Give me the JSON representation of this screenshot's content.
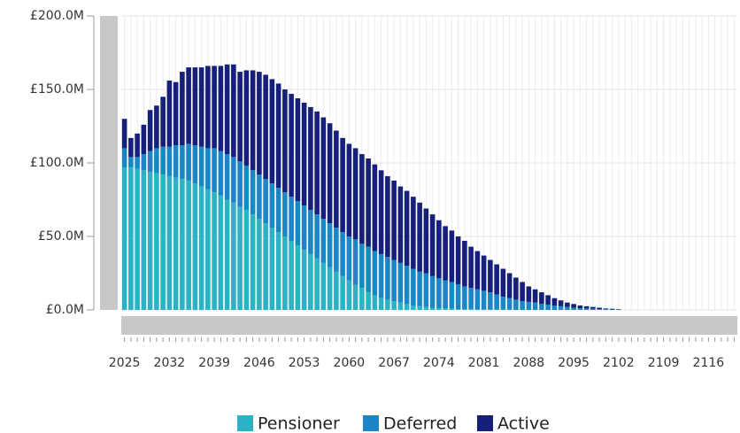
{
  "chart_data": {
    "type": "stacked_bar",
    "categories": [
      "2025",
      null,
      null,
      null,
      null,
      null,
      null,
      "2032",
      null,
      null,
      null,
      null,
      null,
      null,
      "2039",
      null,
      null,
      null,
      null,
      null,
      null,
      "2046",
      null,
      null,
      null,
      null,
      null,
      null,
      "2053",
      null,
      null,
      null,
      null,
      null,
      null,
      "2060",
      null,
      null,
      null,
      null,
      null,
      null,
      "2067",
      null,
      null,
      null,
      null,
      null,
      null,
      "2074",
      null,
      null,
      null,
      null,
      null,
      null,
      "2081",
      null,
      null,
      null,
      null,
      null,
      null,
      "2088",
      null,
      null,
      null,
      null,
      null,
      null,
      "2095",
      null,
      null,
      null,
      null,
      null,
      null,
      "2102",
      null,
      null,
      null,
      null,
      null,
      null,
      "2109",
      null,
      null,
      null,
      null,
      null,
      null,
      "2116",
      null,
      null,
      null,
      null
    ],
    "series": [
      {
        "name": "Pensioner",
        "color": "#2bb3c5",
        "values": [
          97,
          97,
          96,
          95,
          94,
          93,
          92,
          91,
          90,
          89,
          88,
          86,
          84,
          82,
          80,
          78,
          75,
          73,
          70,
          68,
          65,
          62,
          59,
          56,
          53,
          50,
          47,
          44,
          41,
          38,
          35,
          32,
          29,
          26,
          23,
          20,
          17,
          15,
          12,
          10,
          8,
          7,
          6,
          5,
          4,
          3,
          2.5,
          2,
          1.5,
          1.2,
          1,
          0.8,
          0.6,
          0.5,
          0.4,
          0.3,
          0.2,
          0.2,
          0.1,
          0.1,
          0.1,
          0,
          0,
          0,
          0,
          0,
          0,
          0,
          0,
          0,
          0,
          0,
          0,
          0,
          0,
          0,
          0,
          0,
          0,
          0,
          0,
          0,
          0,
          0,
          0,
          0,
          0,
          0,
          0,
          0,
          0,
          0,
          0,
          0,
          0,
          0
        ]
      },
      {
        "name": "Deferred",
        "color": "#1b86c6",
        "values": [
          13,
          7,
          8,
          11,
          14,
          17,
          19,
          20,
          22,
          23,
          25,
          26,
          27,
          28,
          30,
          30,
          31,
          31,
          31,
          30,
          30,
          30,
          30,
          30,
          30,
          30,
          30,
          30,
          30,
          30,
          30,
          30,
          30,
          30,
          30,
          30,
          31,
          30,
          31,
          30,
          30,
          29,
          28,
          27,
          26,
          25,
          23.5,
          23,
          21.5,
          20.3,
          19,
          18.2,
          16.9,
          15.5,
          14.6,
          13.7,
          12.8,
          11.8,
          10.4,
          8.9,
          7.9,
          7,
          6,
          5.5,
          5,
          4,
          3.5,
          3,
          2.5,
          2,
          1.5,
          1.2,
          1,
          0.8,
          0.6,
          0.5,
          0.3,
          0.2,
          0,
          0,
          0,
          0,
          0,
          0,
          0,
          0,
          0,
          0,
          0,
          0,
          0,
          0,
          0,
          0,
          0,
          0
        ]
      },
      {
        "name": "Active",
        "color": "#16207a",
        "values": [
          20,
          13,
          16,
          20,
          28,
          29,
          34,
          45,
          43,
          50,
          52,
          53,
          54,
          56,
          56,
          58,
          61,
          63,
          61,
          65,
          68,
          70,
          71,
          71,
          71,
          70,
          70,
          70,
          70,
          70,
          70,
          69,
          68,
          66,
          64,
          63,
          62,
          61,
          60,
          59,
          57,
          55,
          54,
          52,
          51,
          49,
          47,
          44,
          42,
          39.5,
          37,
          35,
          32.5,
          31,
          28,
          26,
          24,
          22,
          20.5,
          19,
          17,
          15,
          13,
          10.5,
          9,
          8,
          6.5,
          5,
          4,
          3,
          2.5,
          1.8,
          1.5,
          1.2,
          0.9,
          0.5,
          0.5,
          0.3,
          0,
          0,
          0,
          0,
          0,
          0,
          0,
          0,
          0,
          0,
          0,
          0,
          0,
          0,
          0,
          0,
          0,
          0
        ]
      }
    ],
    "ylim": [
      0,
      200
    ],
    "yticks": [
      {
        "value": 0,
        "label": "£0.0M"
      },
      {
        "value": 50,
        "label": "£50.0M"
      },
      {
        "value": 100,
        "label": "£100.0M"
      },
      {
        "value": 150,
        "label": "£150.0M"
      },
      {
        "value": 200,
        "label": "£200.0M"
      }
    ],
    "grid": true,
    "legend": "bottom"
  }
}
